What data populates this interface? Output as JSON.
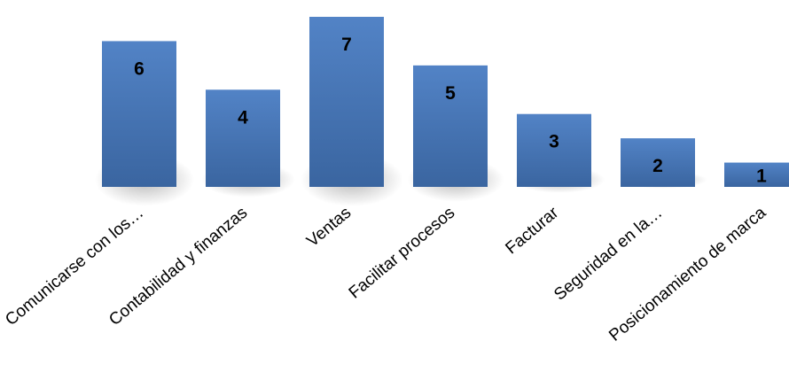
{
  "chart_data": {
    "type": "bar",
    "title": "",
    "xlabel": "",
    "ylabel": "",
    "categories": [
      "Comunicarse con los…",
      "Contabilidad y finanzas",
      "Ventas",
      "Facilitar procesos",
      "Facturar",
      "Seguridad en la…",
      "Posicionamiento de marca"
    ],
    "values": [
      6,
      4,
      7,
      5,
      3,
      2,
      1
    ],
    "ylim": [
      0,
      7
    ],
    "grid": false,
    "legend": "none",
    "data_labels": true,
    "colors": {
      "bar_top": "#5283c6",
      "bar_bottom": "#3a65a0",
      "shadow": "#000000"
    }
  }
}
